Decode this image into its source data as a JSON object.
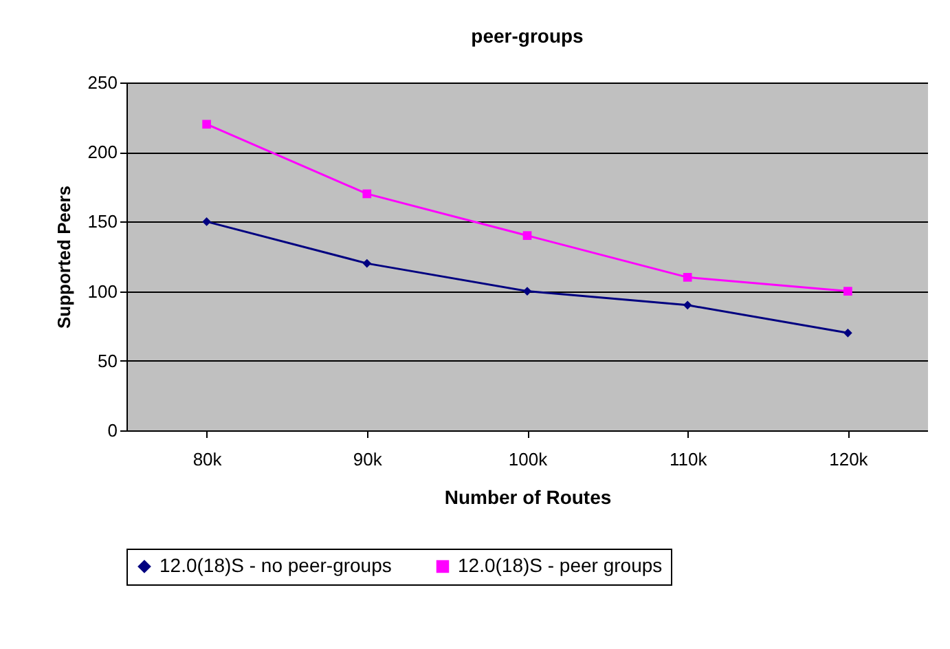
{
  "chart_data": {
    "type": "line",
    "title": "peer-groups",
    "xlabel": "Number of Routes",
    "ylabel": "Supported Peers",
    "categories": [
      "80k",
      "90k",
      "100k",
      "110k",
      "120k"
    ],
    "series": [
      {
        "name": "12.0(18)S - no peer-groups",
        "color": "#000080",
        "marker": "diamond",
        "values": [
          150,
          120,
          100,
          90,
          70
        ]
      },
      {
        "name": "12.0(18)S - peer groups",
        "color": "#ff00ff",
        "marker": "square",
        "values": [
          220,
          170,
          140,
          110,
          100
        ]
      }
    ],
    "ylim": [
      0,
      250
    ],
    "yticks": [
      0,
      50,
      100,
      150,
      200,
      250
    ],
    "grid": "y",
    "legend": "bottom",
    "line_style": "solid"
  }
}
